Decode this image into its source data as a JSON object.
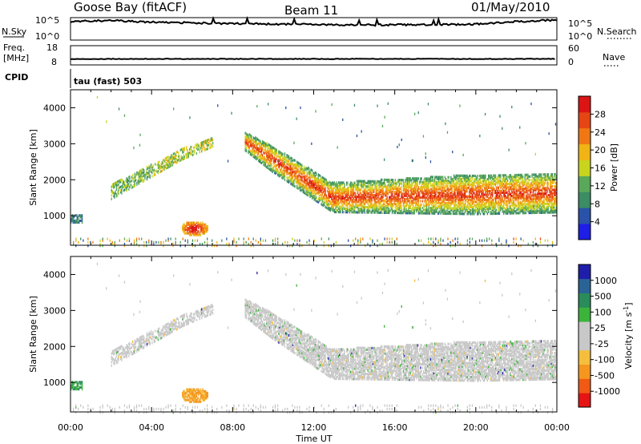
{
  "header": {
    "station": "Goose Bay (fitACF)",
    "beam": "Beam 11",
    "date": "01/May/2010"
  },
  "top_panels": {
    "nsky_label": "N.Sky",
    "nsearch_label": "N.Search",
    "freq_label_1": "Freq.",
    "freq_label_2": "[MHz]",
    "nave_label": "Nave",
    "cpid_label": "CPID",
    "cpid_value": "tau (fast) 503",
    "noise_ticks_left": [
      "10^5",
      "10^0"
    ],
    "noise_ticks_right": [
      "10^5",
      "10^0"
    ],
    "freq_ticks_left": [
      "18",
      "8"
    ],
    "nave_ticks_right": [
      "60",
      "0"
    ]
  },
  "colors": {
    "power_scale": [
      "#1e1ee6",
      "#2a52a8",
      "#3c8c64",
      "#5aa85a",
      "#c8d41e",
      "#f0b414",
      "#f07814",
      "#e64614",
      "#dc1414"
    ],
    "velocity_scale": [
      "#e61414",
      "#f05a14",
      "#f5961e",
      "#f5be3c",
      "#c8c8c8",
      "#c8c8c8",
      "#3cb43c",
      "#2a8c5a",
      "#2a6496",
      "#1e1eaa"
    ]
  },
  "chart_data": [
    {
      "type": "line",
      "title": "N.Sky / N.Search noise",
      "x_range": [
        "00:00",
        "24:00"
      ],
      "y_scale": "log",
      "ylim": [
        1,
        100000
      ],
      "series": [
        {
          "name": "N.Sky",
          "x": [
            0,
            1,
            2,
            4,
            6,
            8,
            10,
            12,
            14,
            16,
            18,
            20,
            22,
            23.5
          ],
          "y": [
            25000,
            40000,
            45000,
            20000,
            12000,
            8000,
            6000,
            5000,
            3500,
            4000,
            4500,
            6000,
            25000,
            55000
          ]
        }
      ]
    },
    {
      "type": "line",
      "title": "Freq / Nave",
      "x_range": [
        "00:00",
        "24:00"
      ],
      "series": [
        {
          "name": "Freq.",
          "y_constant": 10
        }
      ]
    },
    {
      "type": "heatmap",
      "title": "Power",
      "xlabel": "Time UT",
      "ylabel": "Slant Range [km]",
      "x_ticks": [
        "00:00",
        "04:00",
        "08:00",
        "12:00",
        "16:00",
        "20:00",
        "00:00"
      ],
      "y_ticks": [
        1000,
        2000,
        3000,
        4000
      ],
      "ylim": [
        180,
        4500
      ],
      "colorbar_label": "Power [dB]",
      "colorbar_ticks": [
        4,
        8,
        12,
        16,
        20,
        24,
        28
      ],
      "features": [
        {
          "time_start": 0.0,
          "time_end": 0.6,
          "range_km": 950,
          "power_db": 8
        },
        {
          "time_start": 2.0,
          "time_end": 7.0,
          "range_start_km": 1600,
          "range_end_km": 2900,
          "power_db": 10
        },
        {
          "time_start": 5.5,
          "time_end": 7.0,
          "range_km": 650,
          "power_db": 24
        },
        {
          "time_start": 8.6,
          "time_end": 24.0,
          "range_start_km": 3100,
          "range_end_km": 1500,
          "power_db": 18
        }
      ]
    },
    {
      "type": "heatmap",
      "title": "Velocity",
      "xlabel": "Time UT",
      "ylabel": "Slant Range [km]",
      "x_ticks": [
        "00:00",
        "04:00",
        "08:00",
        "12:00",
        "16:00",
        "20:00",
        "00:00"
      ],
      "y_ticks": [
        1000,
        2000,
        3000,
        4000
      ],
      "ylim": [
        180,
        4500
      ],
      "colorbar_label": "Velocity [m s^-1]",
      "colorbar_ticks": [
        "1000",
        "500",
        "100",
        "25",
        "-25",
        "-100",
        "-500",
        "-1000"
      ],
      "features": [
        {
          "time_start": 5.5,
          "time_end": 7.0,
          "range_km": 650,
          "velocity": -300
        },
        {
          "time_start": 2.0,
          "time_end": 24.0,
          "velocity": 0
        }
      ]
    }
  ],
  "axes": {
    "ylabel": "Slant Range [km]",
    "xlabel": "Time UT",
    "power_label": "Power [dB]",
    "velocity_label_1": "Velocity [m s",
    "velocity_label_sup": "-1",
    "velocity_label_2": "]",
    "time_ticks": [
      "00:00",
      "04:00",
      "08:00",
      "12:00",
      "16:00",
      "20:00",
      "00:00"
    ],
    "range_ticks": [
      "1000",
      "2000",
      "3000",
      "4000"
    ],
    "power_ticks": [
      "4",
      "8",
      "12",
      "16",
      "20",
      "24",
      "28"
    ],
    "velocity_ticks": [
      "1000",
      "500",
      "100",
      "25",
      "-25",
      "-100",
      "-500",
      "-1000"
    ]
  }
}
